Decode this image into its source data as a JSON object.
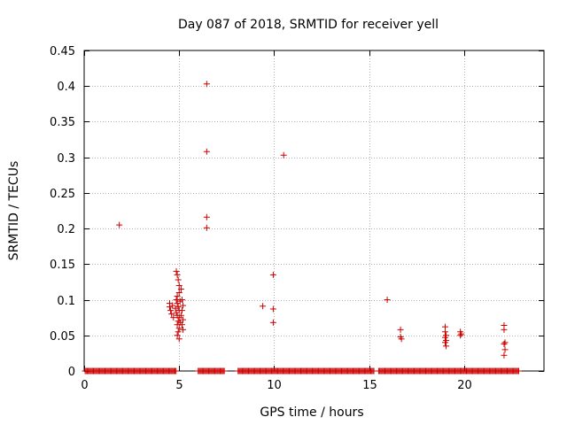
{
  "chart_data": {
    "type": "scatter",
    "title": "Day 087 of 2018, SRMTID for receiver yell",
    "xlabel": "GPS time / hours",
    "ylabel": "SRMTID / TECUs",
    "xlim": [
      0,
      24.2
    ],
    "ylim": [
      0,
      0.45
    ],
    "x_ticks": [
      0,
      5,
      10,
      15,
      20
    ],
    "x_tick_labels": [
      "0",
      "5",
      "10",
      "15",
      "20"
    ],
    "y_ticks": [
      0,
      0.05,
      0.1,
      0.15,
      0.2,
      0.25,
      0.3,
      0.35,
      0.4,
      0.45
    ],
    "y_tick_labels": [
      "0",
      "0.05",
      "0.1",
      "0.15",
      "0.2",
      "0.25",
      "0.3",
      "0.35",
      "0.4",
      "0.45"
    ],
    "grid": true,
    "marker": "+",
    "color": "#cc0000",
    "series": [
      {
        "name": "SRMTID",
        "points": [
          [
            1.85,
            0.205
          ],
          [
            6.45,
            0.403
          ],
          [
            6.45,
            0.308
          ],
          [
            6.45,
            0.216
          ],
          [
            6.45,
            0.201
          ],
          [
            10.5,
            0.303
          ],
          [
            9.95,
            0.135
          ],
          [
            9.95,
            0.087
          ],
          [
            9.95,
            0.068
          ],
          [
            9.4,
            0.091
          ],
          [
            15.95,
            0.1
          ],
          [
            4.5,
            0.095
          ],
          [
            4.5,
            0.09
          ],
          [
            4.55,
            0.085
          ],
          [
            4.6,
            0.08
          ],
          [
            4.7,
            0.075
          ],
          [
            4.65,
            0.092
          ],
          [
            4.85,
            0.14
          ],
          [
            4.9,
            0.135
          ],
          [
            4.95,
            0.128
          ],
          [
            5.0,
            0.12
          ],
          [
            5.0,
            0.11
          ],
          [
            4.9,
            0.105
          ],
          [
            4.85,
            0.1
          ],
          [
            4.9,
            0.095
          ],
          [
            4.95,
            0.09
          ],
          [
            5.0,
            0.085
          ],
          [
            4.85,
            0.082
          ],
          [
            4.9,
            0.078
          ],
          [
            5.0,
            0.075
          ],
          [
            4.95,
            0.07
          ],
          [
            5.05,
            0.068
          ],
          [
            4.9,
            0.065
          ],
          [
            5.0,
            0.06
          ],
          [
            4.95,
            0.055
          ],
          [
            4.9,
            0.05
          ],
          [
            5.0,
            0.045
          ],
          [
            5.1,
            0.115
          ],
          [
            5.15,
            0.1
          ],
          [
            5.2,
            0.092
          ],
          [
            5.15,
            0.085
          ],
          [
            5.1,
            0.078
          ],
          [
            5.2,
            0.072
          ],
          [
            5.15,
            0.065
          ],
          [
            5.2,
            0.058
          ],
          [
            4.8,
            0.088
          ],
          [
            5.05,
            0.098
          ],
          [
            16.65,
            0.058
          ],
          [
            16.65,
            0.048
          ],
          [
            16.7,
            0.045
          ],
          [
            19.0,
            0.062
          ],
          [
            19.0,
            0.055
          ],
          [
            19.05,
            0.05
          ],
          [
            19.0,
            0.047
          ],
          [
            19.05,
            0.043
          ],
          [
            19.0,
            0.04
          ],
          [
            19.05,
            0.035
          ],
          [
            19.8,
            0.055
          ],
          [
            19.85,
            0.052
          ],
          [
            19.8,
            0.05
          ],
          [
            22.1,
            0.064
          ],
          [
            22.1,
            0.058
          ],
          [
            22.15,
            0.04
          ],
          [
            22.1,
            0.038
          ],
          [
            22.15,
            0.03
          ],
          [
            22.1,
            0.022
          ]
        ],
        "zero_segments": [
          [
            0.05,
            4.85
          ],
          [
            6.0,
            7.4
          ],
          [
            8.1,
            15.3
          ],
          [
            15.5,
            22.9
          ]
        ]
      }
    ]
  }
}
